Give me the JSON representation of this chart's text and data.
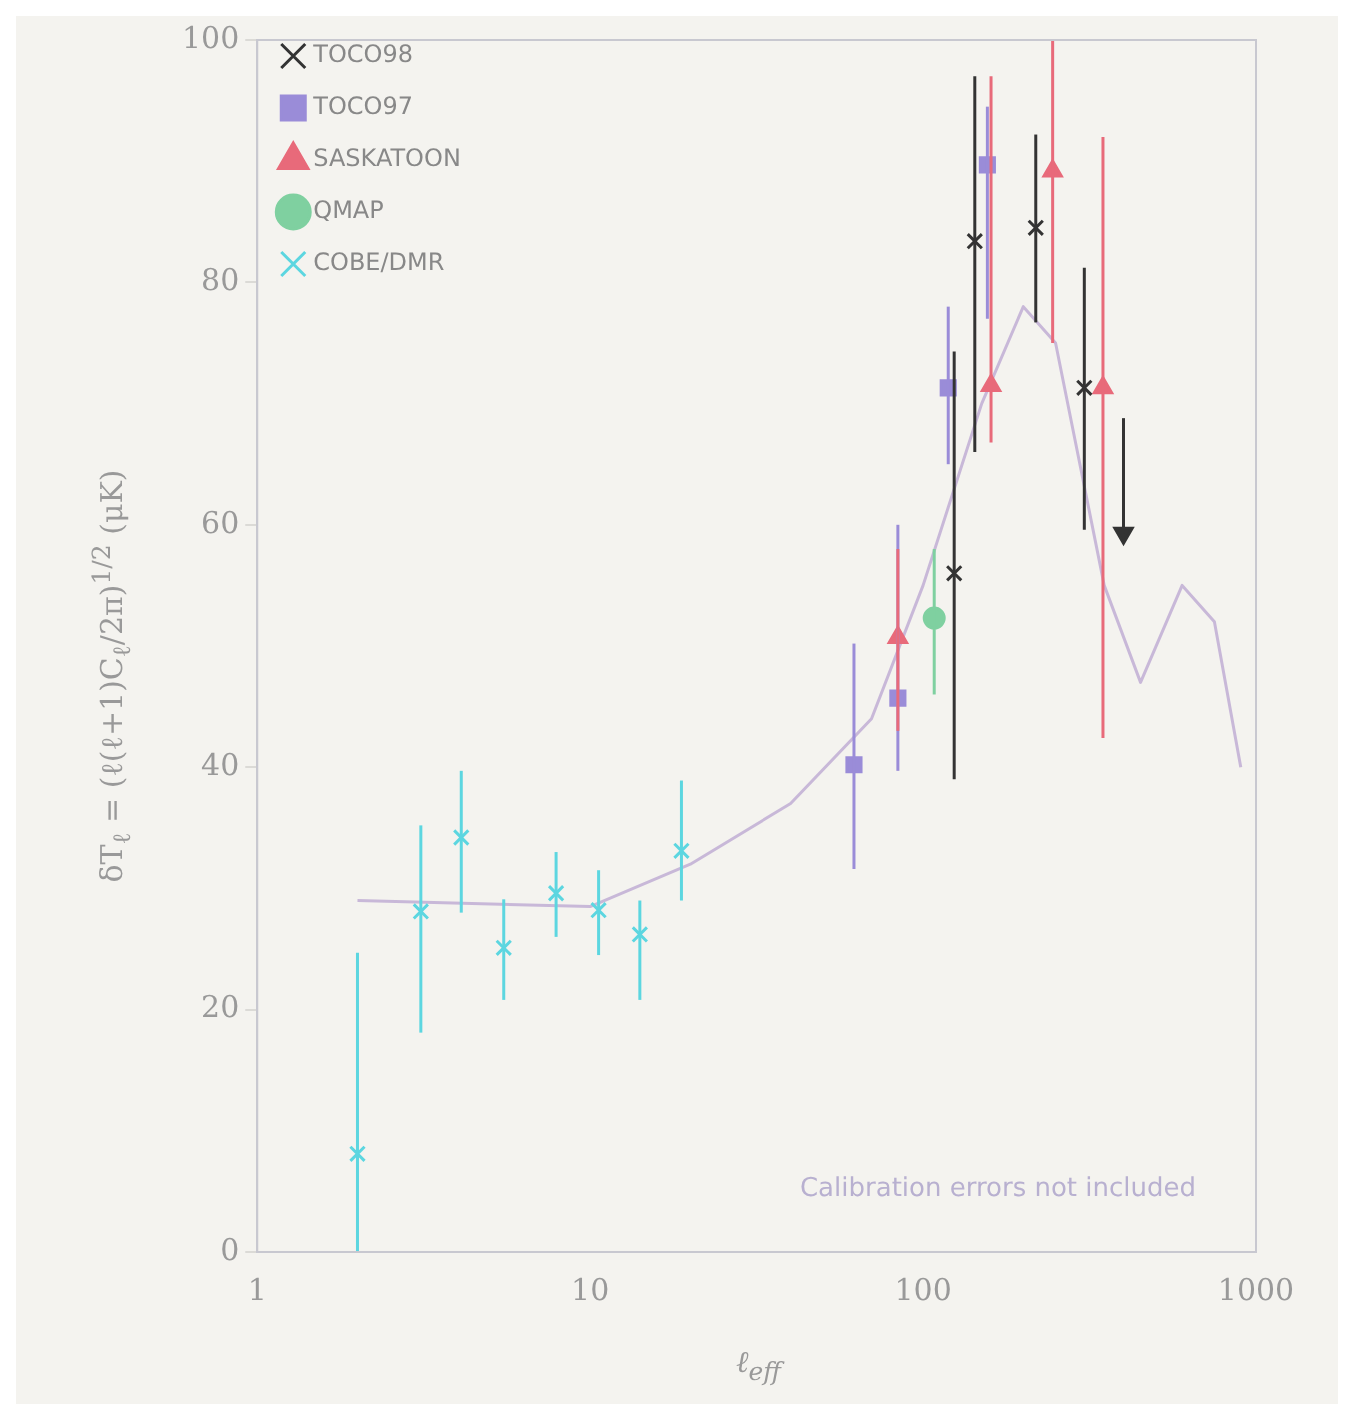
{
  "chart_data": {
    "type": "scatter",
    "xlabel": "ℓ$_{eff}$",
    "ylabel": "δT$_{ℓ}$ = (ℓ(ℓ+1)C$_{ℓ}$/2π)$^{1/2}$ (μK)",
    "log": "x",
    "xlim": [
      1,
      1000
    ],
    "ylim": [
      0,
      100
    ],
    "xticks": [
      1,
      10,
      100,
      1000
    ],
    "yticks": [
      0,
      20,
      40,
      60,
      80,
      100
    ],
    "grid": false,
    "legend": "top left",
    "annotations": [
      "Calibration errors not included"
    ],
    "series": [
      {
        "name": "TOCO98",
        "color": "#333333",
        "marker": "cross",
        "x": [
          124,
          143,
          218,
          305
        ],
        "values": [
          56,
          83.4,
          84.5,
          71.3
        ],
        "errors": [
          [
            39,
            74.3
          ],
          [
            66,
            97
          ],
          [
            76.7,
            92.2
          ],
          [
            59.6,
            81.2
          ]
        ]
      },
      {
        "name": "TOCO97",
        "color": "#9a8cd8",
        "marker": "square",
        "x": [
          62,
          84,
          119,
          156
        ],
        "values": [
          40.2,
          45.7,
          71.3,
          89.7
        ],
        "errors": [
          [
            31.6,
            50.2
          ],
          [
            39.7,
            60
          ],
          [
            65,
            78
          ],
          [
            77,
            94.5
          ]
        ]
      },
      {
        "name": "SASKATOON",
        "color": "#e86a7a",
        "marker": "triangle",
        "x": [
          84,
          160,
          245,
          347
        ],
        "values": [
          50.7,
          71.5,
          89.2,
          71.3
        ],
        "errors": [
          [
            43,
            58
          ],
          [
            66.8,
            97
          ],
          [
            75,
            100
          ],
          [
            42.4,
            92
          ]
        ]
      },
      {
        "name": "QMAP",
        "color": "#7fd0a0",
        "marker": "circle",
        "x": [
          108
        ],
        "values": [
          52.3
        ],
        "errors": [
          [
            46,
            58
          ]
        ]
      },
      {
        "name": "COBE/DMR",
        "color": "#5cd6e0",
        "marker": "cross",
        "x": [
          2,
          3.1,
          4.1,
          5.5,
          7.9,
          10.6,
          14.1,
          18.8
        ],
        "values": [
          8.1,
          28.1,
          34.2,
          25.1,
          29.6,
          28.2,
          26.2,
          33.1
        ],
        "errors": [
          [
            0,
            24.7
          ],
          [
            18.1,
            35.2
          ],
          [
            28,
            39.7
          ],
          [
            20.8,
            29.1
          ],
          [
            26,
            33
          ],
          [
            24.5,
            31.5
          ],
          [
            20.8,
            29
          ],
          [
            29,
            38.9
          ]
        ]
      },
      {
        "color": "#333333",
        "marker": "triangle",
        "x": [
          400
        ],
        "values": [
          59.3
        ],
        "errors": [
          [
            59.3,
            68.8
          ]
        ]
      },
      {
        "type": "line",
        "color": "#c8b8d8",
        "marker": "none",
        "x": [
          2,
          10,
          20,
          40,
          70,
          100,
          150,
          200,
          250,
          350,
          450,
          600,
          750,
          900
        ],
        "values": [
          29,
          28.5,
          32,
          37,
          44,
          55,
          70,
          78,
          75,
          55,
          47,
          55,
          52,
          40
        ]
      }
    ]
  }
}
